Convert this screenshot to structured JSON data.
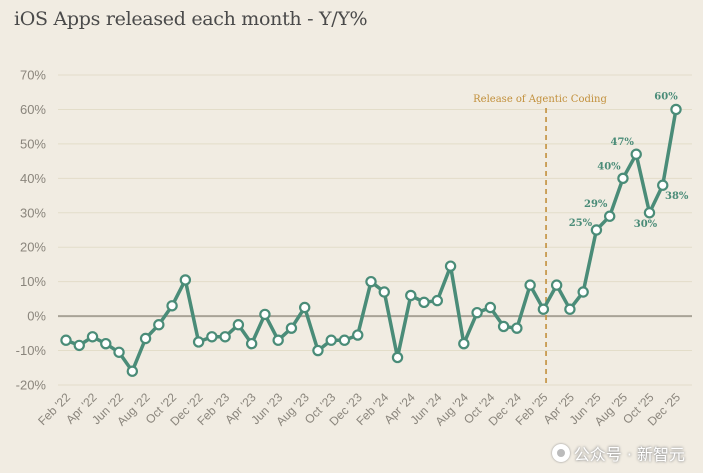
{
  "chart_data": {
    "type": "line",
    "title": "iOS Apps released each month - Y/Y%",
    "ylabel": "",
    "xlabel": "",
    "ylim": [
      -20,
      70
    ],
    "yticks": [
      70,
      60,
      50,
      40,
      30,
      20,
      10,
      0,
      -10,
      -20
    ],
    "ytick_labels": [
      "70%",
      "60%",
      "50%",
      "40%",
      "30%",
      "20%",
      "10%",
      "0%",
      "-10%",
      "-20%"
    ],
    "x_tick_labels": [
      "Feb '22",
      "Apr '22",
      "Jun '22",
      "Aug '22",
      "Oct '22",
      "Dec '22",
      "Feb '23",
      "Apr '23",
      "Jun '23",
      "Aug '23",
      "Oct '23",
      "Dec '23",
      "Feb '24",
      "Apr '24",
      "Jun '24",
      "Aug '24",
      "Oct '24",
      "Dec '24",
      "Feb '25",
      "Apr '25",
      "Jun '25",
      "Aug '25",
      "Oct '25",
      "Dec '25"
    ],
    "series": [
      {
        "name": "Y/Y%",
        "color": "#4a8c78",
        "values": [
          -7,
          -8.5,
          -6,
          -8,
          -10.5,
          -16,
          -6.5,
          -2.5,
          3,
          10.5,
          -7.5,
          -6,
          -6,
          -2.5,
          -8,
          0.5,
          -7,
          -3.5,
          2.5,
          -10,
          -7,
          -7,
          -5.5,
          10,
          7,
          -12,
          6,
          4,
          4.5,
          14.5,
          -8,
          1,
          2.5,
          -3,
          -3.5,
          9,
          2,
          9,
          2,
          7,
          25,
          29,
          40,
          47,
          30,
          38,
          60
        ]
      }
    ],
    "data_labels": [
      {
        "index": 40,
        "text": "25%"
      },
      {
        "index": 41,
        "text": "29%"
      },
      {
        "index": 42,
        "text": "40%"
      },
      {
        "index": 43,
        "text": "47%"
      },
      {
        "index": 44,
        "text": "30%"
      },
      {
        "index": 45,
        "text": "38%"
      },
      {
        "index": 46,
        "text": "60%"
      }
    ],
    "annotation": {
      "text": "Release of Agentic Coding",
      "x_index": 36,
      "color": "#c2903c"
    },
    "grid": true,
    "zero_line_color": "#a8a397"
  },
  "watermark": {
    "text": "公众号 · 新智元"
  }
}
